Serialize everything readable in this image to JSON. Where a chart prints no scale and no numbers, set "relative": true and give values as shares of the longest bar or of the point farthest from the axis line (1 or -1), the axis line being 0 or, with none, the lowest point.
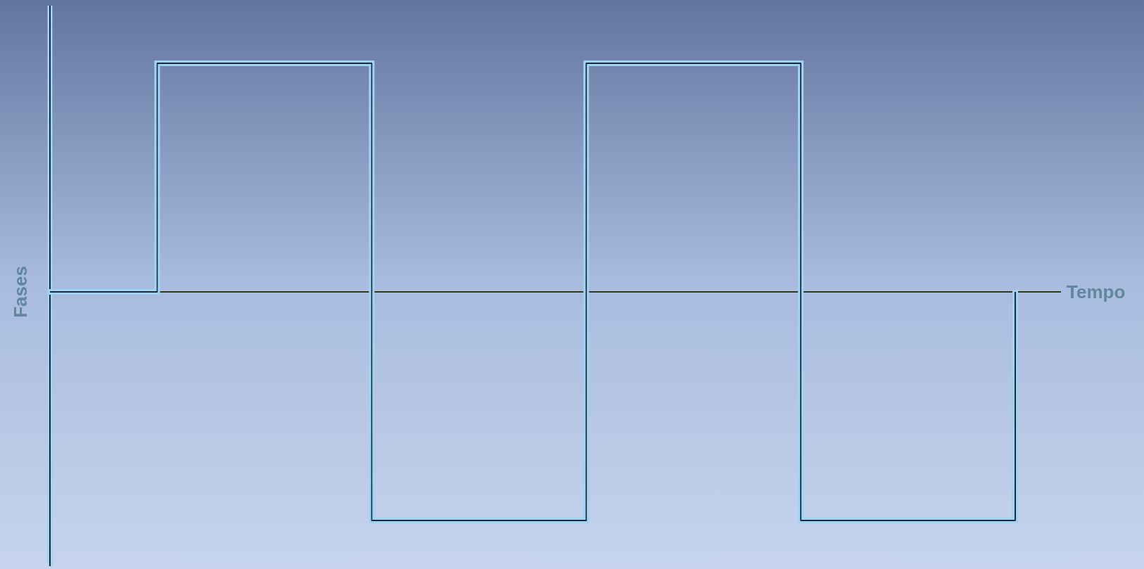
{
  "chart_data": {
    "type": "step",
    "relative": true,
    "xlabel": "Tempo",
    "ylabel": "Fases",
    "categories": [
      null,
      null,
      null,
      null,
      null,
      null,
      null,
      null,
      null,
      null
    ],
    "values": [
      0,
      1,
      1,
      -1,
      -1,
      1,
      1,
      -1,
      -1,
      0
    ],
    "color": "#1c2b3a"
  }
}
